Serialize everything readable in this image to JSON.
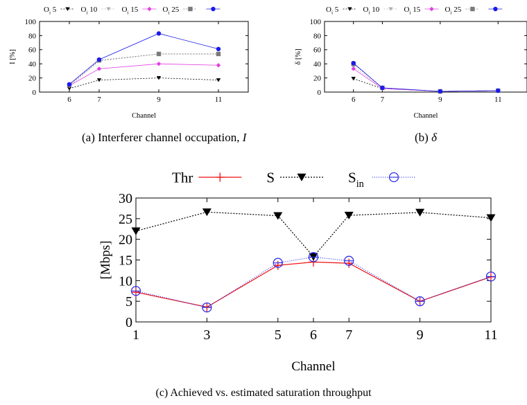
{
  "chart_data": [
    {
      "type": "line",
      "x": [
        6,
        7,
        9,
        11
      ],
      "xticks": [
        "6",
        "7",
        "9",
        "11"
      ],
      "xlabel": "Channel",
      "ylabel": "I [%]",
      "ylim": [
        0,
        100
      ],
      "yticks": [
        "0",
        "20",
        "40",
        "60",
        "80",
        "100"
      ],
      "legend_position": "top",
      "series": [
        {
          "name_main": "O",
          "name_sub": "i",
          "name_rest": " 5",
          "color": "#000000",
          "marker": "triangle-down",
          "dash": "2,2",
          "values": [
            5,
            17,
            20,
            17
          ]
        },
        {
          "name_main": "O",
          "name_sub": "i",
          "name_rest": " 10",
          "color": "#b0b0b0",
          "marker": "triangle-down",
          "dash": "2,2",
          "values": [
            8,
            44,
            54,
            54
          ]
        },
        {
          "name_main": "O",
          "name_sub": "i",
          "name_rest": " 15",
          "color": "#e040e0",
          "marker": "diamond",
          "dash": "",
          "values": [
            9,
            33,
            40,
            38
          ]
        },
        {
          "name_main": "O",
          "name_sub": "i",
          "name_rest": " 25",
          "color": "#7a7a7a",
          "marker": "square",
          "dash": "2,2",
          "values": [
            10,
            45,
            54,
            54
          ]
        },
        {
          "name_main": "",
          "name_sub": "",
          "name_rest": "",
          "color": "#1a1aee",
          "marker": "circle",
          "dash": "",
          "values": [
            11,
            46,
            83,
            61
          ]
        }
      ],
      "caption": "(a) Interferer channel occupation, ",
      "caption_var": "I"
    },
    {
      "type": "line",
      "x": [
        6,
        7,
        9,
        11
      ],
      "xticks": [
        "6",
        "7",
        "9",
        "11"
      ],
      "xlabel": "Channel",
      "ylabel": "δ [%]",
      "ylim": [
        0,
        100
      ],
      "yticks": [
        "0",
        "20",
        "40",
        "60",
        "80",
        "100"
      ],
      "legend_position": "top",
      "series": [
        {
          "name_main": "O",
          "name_sub": "i",
          "name_rest": " 5",
          "color": "#000000",
          "marker": "triangle-down",
          "dash": "2,2",
          "values": [
            19,
            5,
            1,
            2
          ]
        },
        {
          "name_main": "O",
          "name_sub": "i",
          "name_rest": " 10",
          "color": "#b0b0b0",
          "marker": "triangle-down",
          "dash": "2,2",
          "values": [
            36,
            6,
            1,
            2
          ]
        },
        {
          "name_main": "O",
          "name_sub": "i",
          "name_rest": " 15",
          "color": "#e040e0",
          "marker": "diamond",
          "dash": "",
          "values": [
            33,
            5,
            1,
            2
          ]
        },
        {
          "name_main": "O",
          "name_sub": "i",
          "name_rest": " 25",
          "color": "#7a7a7a",
          "marker": "square",
          "dash": "2,2",
          "values": [
            40,
            6,
            1,
            2
          ]
        },
        {
          "name_main": "",
          "name_sub": "",
          "name_rest": "",
          "color": "#1a1aee",
          "marker": "circle",
          "dash": "",
          "values": [
            41,
            6,
            1,
            2
          ]
        }
      ],
      "caption": "(b) ",
      "caption_var": "δ"
    },
    {
      "type": "line",
      "x": [
        1,
        3,
        5,
        6,
        7,
        9,
        11
      ],
      "xticks": [
        "1",
        "3",
        "5",
        "6",
        "7",
        "9",
        "11"
      ],
      "xlabel": "Channel",
      "ylabel": "[Mbps]",
      "ylim": [
        0,
        30
      ],
      "yticks": [
        "0",
        "5",
        "10",
        "15",
        "20",
        "25",
        "30"
      ],
      "legend_position": "top",
      "series": [
        {
          "name_main": "Thr",
          "name_sub": "",
          "name_rest": "",
          "color": "#ee1111",
          "marker": "plus",
          "dash": "",
          "values": [
            7.2,
            3.6,
            13.7,
            14.5,
            14.2,
            5.0,
            10.9
          ]
        },
        {
          "name_main": "S",
          "name_sub": "",
          "name_rest": "",
          "color": "#000000",
          "marker": "triangle-down",
          "dash": "2,2",
          "values": [
            22.0,
            26.6,
            25.7,
            15.8,
            25.8,
            26.5,
            25.2
          ]
        },
        {
          "name_main": "S",
          "name_sub": "in",
          "name_rest": "",
          "color": "#3030ee",
          "marker": "circle-open",
          "dash": "1,2",
          "values": [
            7.5,
            3.5,
            14.3,
            15.7,
            14.8,
            5.0,
            11.0
          ]
        }
      ],
      "caption": "(c) Achieved vs. estimated saturation throughput",
      "caption_var": ""
    }
  ]
}
